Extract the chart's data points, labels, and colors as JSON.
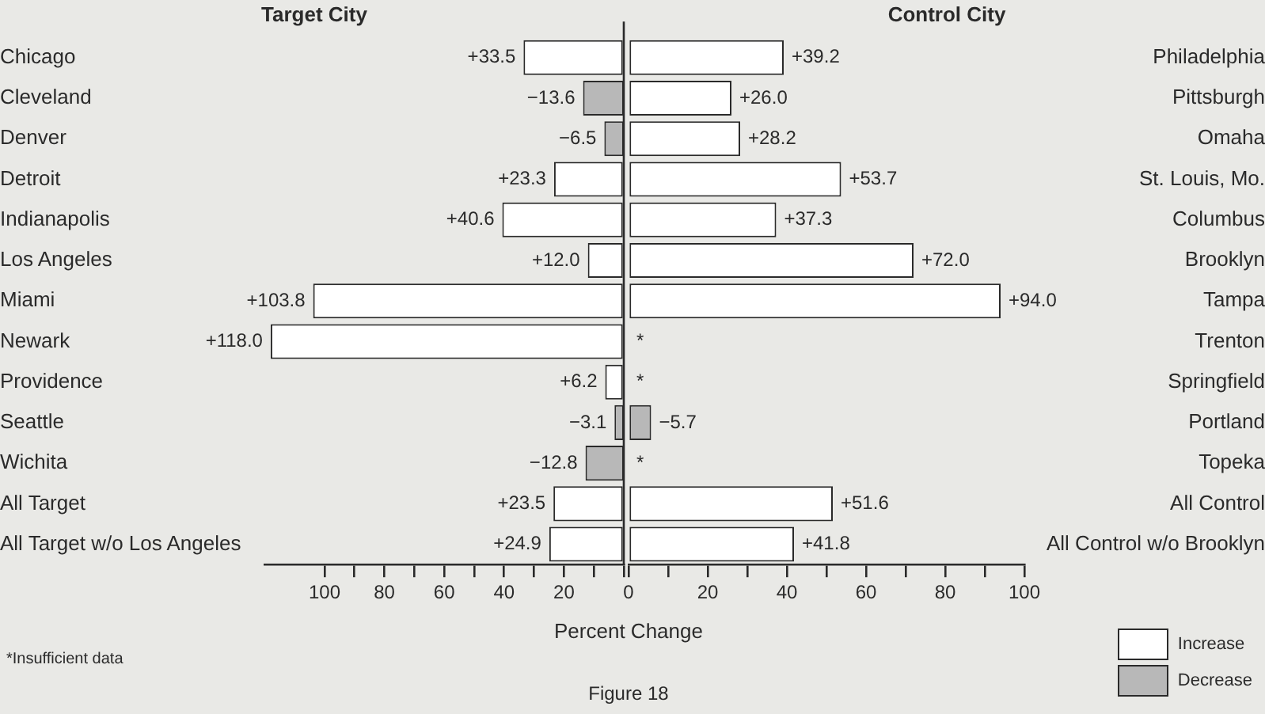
{
  "chart_data": [
    {
      "type": "bar",
      "orientation": "horizontal",
      "title": "Target City",
      "xlabel": "Percent Change",
      "categories": [
        "Chicago",
        "Cleveland",
        "Denver",
        "Detroit",
        "Indianapolis",
        "Los Angeles",
        "Miami",
        "Newark",
        "Providence",
        "Seattle",
        "Wichita",
        "All Target",
        "All Target w/o Los Angeles"
      ],
      "series": [
        {
          "color": "#ffffff",
          "values": [
            33.5,
            null,
            null,
            23.3,
            40.6,
            12.0,
            103.8,
            118.0,
            6.2,
            null,
            null,
            23.5,
            24.9
          ],
          "value_labels": [
            "+33.5",
            null,
            null,
            "+23.3",
            "+40.6",
            "+12.0",
            "+103.8",
            "+118.0",
            "+6.2",
            null,
            null,
            "+23.5",
            "+24.9"
          ]
        },
        {
          "color": "#b8b8b8",
          "values": [
            null,
            -13.6,
            -6.5,
            null,
            null,
            null,
            null,
            null,
            null,
            -3.1,
            -12.8,
            null,
            null
          ],
          "base": [
            null,
            13.6,
            6.5,
            null,
            null,
            null,
            null,
            null,
            null,
            3.1,
            12.8,
            null,
            null
          ],
          "value_labels": [
            null,
            "−13.6",
            "−6.5",
            null,
            null,
            null,
            null,
            null,
            null,
            "−3.1",
            "−12.8",
            null,
            null
          ]
        }
      ],
      "xlim": [
        120,
        0
      ],
      "xticks": [
        100,
        {
          "value": 90,
          "label": null
        },
        80,
        {
          "value": 70,
          "label": null
        },
        60,
        {
          "value": 50,
          "label": null
        },
        40,
        {
          "value": 30,
          "label": null
        },
        20,
        {
          "value": 10,
          "label": null
        },
        {
          "value": 0,
          "label": null
        }
      ],
      "grid": false,
      "annotations": [
        "*Insufficient data",
        "Figure 18"
      ]
    },
    {
      "type": "bar",
      "orientation": "horizontal",
      "title": "Control City",
      "categories": [
        "Philadelphia",
        "Pittsburgh",
        "Omaha",
        "St. Louis, Mo.",
        "Columbus",
        "Brooklyn",
        "Tampa",
        "Trenton",
        "Springfield",
        "Portland",
        "Topeka",
        "All Control",
        "All Control w/o Brooklyn"
      ],
      "series": [
        {
          "name": "Increase",
          "color": "#ffffff",
          "values": [
            39.2,
            26.0,
            28.2,
            53.7,
            37.3,
            72.0,
            94.0,
            null,
            null,
            null,
            null,
            51.6,
            41.8
          ],
          "value_labels": [
            "+39.2",
            "+26.0",
            "+28.2",
            "+53.7",
            "+37.3",
            "+72.0",
            "+94.0",
            "*",
            "*",
            null,
            "*",
            "+51.6",
            "+41.8"
          ]
        },
        {
          "name": "Decrease",
          "color": "#b8b8b8",
          "values": [
            null,
            null,
            null,
            null,
            null,
            null,
            null,
            null,
            null,
            -5.7,
            null,
            null,
            null
          ],
          "base": [
            null,
            null,
            null,
            null,
            null,
            null,
            null,
            null,
            null,
            5.7,
            null,
            null,
            null
          ],
          "value_labels": [
            null,
            null,
            null,
            null,
            null,
            null,
            null,
            null,
            null,
            "−5.7",
            null,
            null,
            null
          ]
        }
      ],
      "xlim": [
        0,
        100
      ],
      "xticks": [
        0,
        {
          "value": 10,
          "label": null
        },
        20,
        {
          "value": 30,
          "label": null
        },
        40,
        {
          "value": 50,
          "label": null
        },
        60,
        {
          "value": 70,
          "label": null
        },
        80,
        {
          "value": 90,
          "label": null
        },
        100
      ],
      "grid": false,
      "legend": "bottom right"
    }
  ]
}
